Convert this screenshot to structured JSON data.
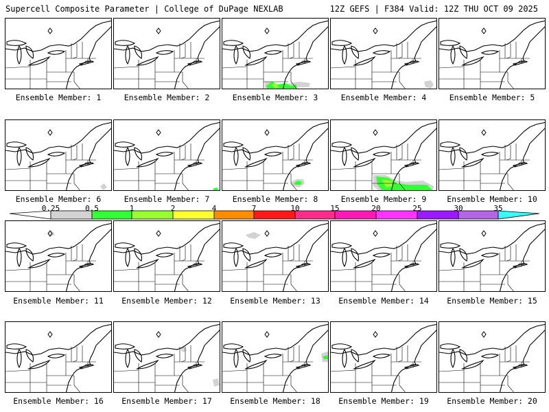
{
  "header": {
    "left": "Supercell Composite Parameter | College of DuPage NEXLAB",
    "right": "12Z GEFS | F384 Valid: 12Z THU OCT 09 2025"
  },
  "colors": {
    "c1": "#d3d3d3",
    "c2": "#33ff33",
    "c3": "#99ff33",
    "c4": "#ffff33",
    "c5": "#ff8c00",
    "c6": "#ff1a1a",
    "c7": "#ff2d8a",
    "c8": "#ff1ab4",
    "c9": "#ff33ff",
    "c10": "#9b1aff",
    "c11": "#b266e6",
    "c12": "#33ffff"
  },
  "colorbar": {
    "labels": [
      "0.25",
      "0.5",
      "1",
      "2",
      "4",
      "7",
      "10",
      "15",
      "20",
      "25",
      "30",
      "35"
    ]
  },
  "members": [
    {
      "label": "Ensemble Member: 1"
    },
    {
      "label": "Ensemble Member: 2"
    },
    {
      "label": "Ensemble Member: 3"
    },
    {
      "label": "Ensemble Member: 4"
    },
    {
      "label": "Ensemble Member: 5"
    },
    {
      "label": "Ensemble Member: 6"
    },
    {
      "label": "Ensemble Member: 7"
    },
    {
      "label": "Ensemble Member: 8"
    },
    {
      "label": "Ensemble Member: 9"
    },
    {
      "label": "Ensemble Member: 10"
    },
    {
      "label": "Ensemble Member: 11"
    },
    {
      "label": "Ensemble Member: 12"
    },
    {
      "label": "Ensemble Member: 13"
    },
    {
      "label": "Ensemble Member: 14"
    },
    {
      "label": "Ensemble Member: 15"
    },
    {
      "label": "Ensemble Member: 16"
    },
    {
      "label": "Ensemble Member: 17"
    },
    {
      "label": "Ensemble Member: 18"
    },
    {
      "label": "Ensemble Member: 19"
    },
    {
      "label": "Ensemble Member: 20"
    }
  ]
}
